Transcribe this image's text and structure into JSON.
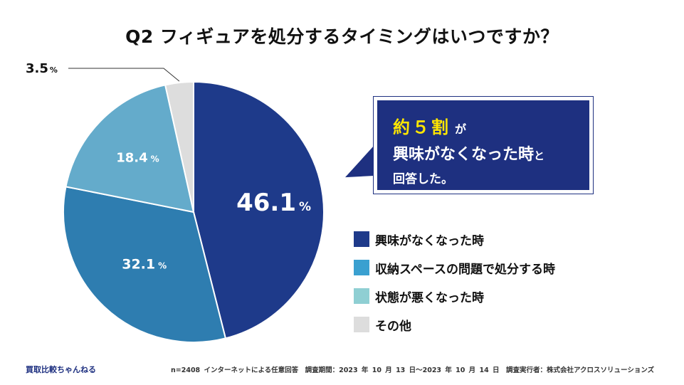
{
  "title": "Q2 フィギュアを処分するタイミングはいつですか？",
  "chart_data": {
    "type": "pie",
    "title": "Q2 フィギュアを処分するタイミングはいつですか？",
    "slices": [
      {
        "label": "興味がなくなった時",
        "value": 46.1,
        "display": "46.1",
        "color": "#1e3a8a"
      },
      {
        "label": "収納スペースの問題で処分する時",
        "value": 32.1,
        "display": "32.1",
        "color": "#2e7db0"
      },
      {
        "label": "状態が悪くなった時",
        "value": 18.4,
        "display": "18.4",
        "color": "#64abcb"
      },
      {
        "label": "その他",
        "value": 3.5,
        "display": "3.5",
        "color": "#dddddd"
      }
    ],
    "unit": "%"
  },
  "callout": {
    "highlight": "約５割",
    "suffix": "が",
    "main": "興味がなくなった時",
    "small": "と",
    "line3": "回答した。"
  },
  "legend": [
    {
      "label": "興味がなくなった時",
      "color": "#1e3a8a"
    },
    {
      "label": "収納スペースの問題で処分する時",
      "color": "#3aa0d0"
    },
    {
      "label": "状態が悪くなった時",
      "color": "#8fcfd3"
    },
    {
      "label": "その他",
      "color": "#dddddd"
    }
  ],
  "footer": {
    "brand": "買取比較ちゃんねる",
    "note": "n=2408 インターネットによる任意回答　調査期間：2023 年 10 月 13 日〜2023 年 10 月 14 日　調査実行者：株式会社アクロスソリューションズ"
  }
}
